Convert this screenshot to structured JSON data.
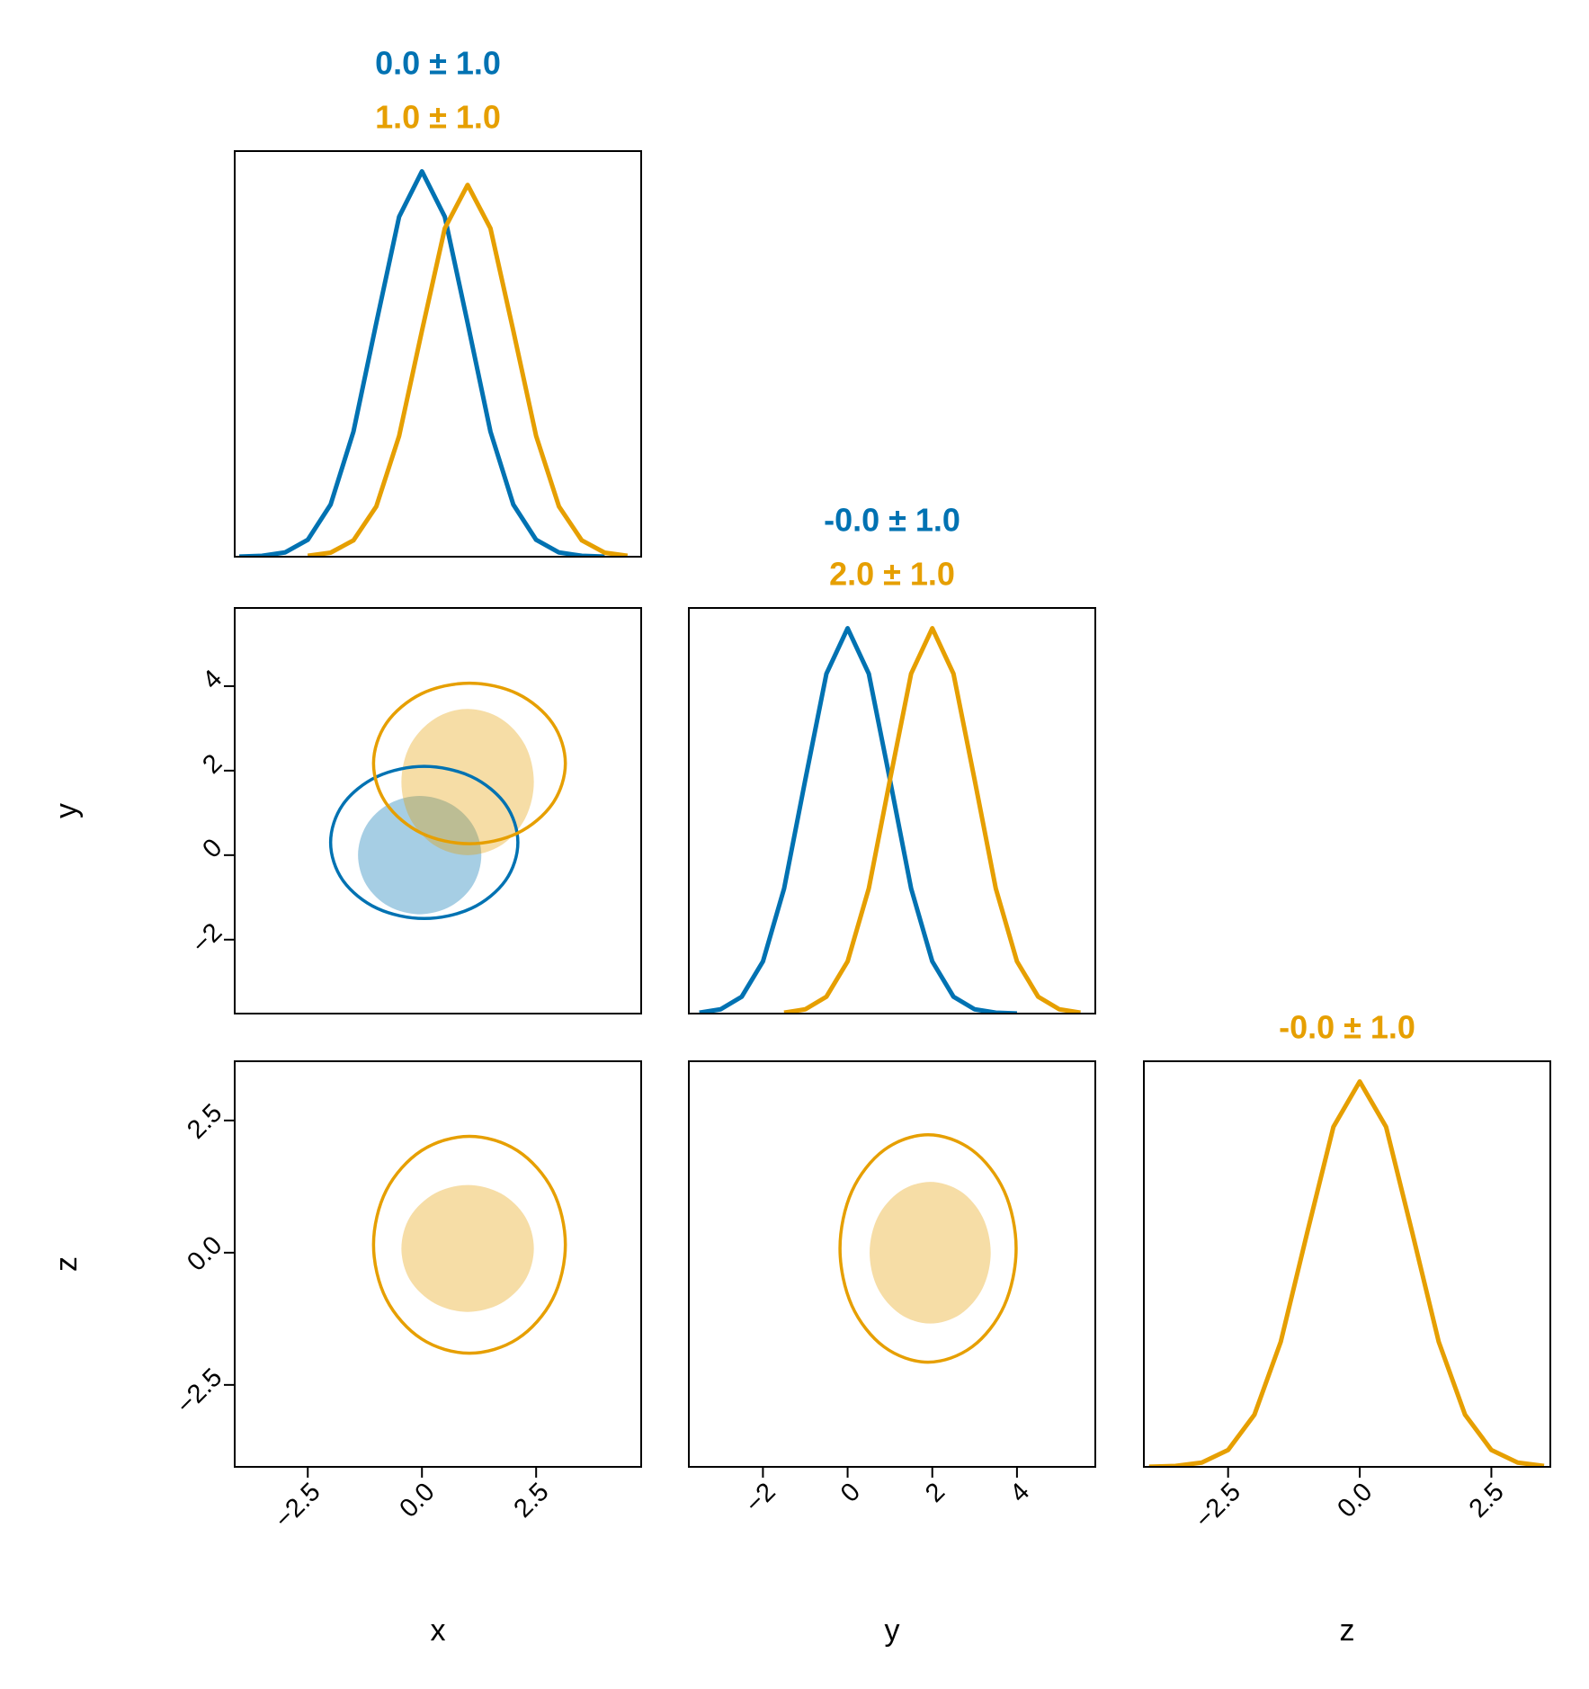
{
  "chart_data": [
    {
      "type": "line",
      "xlim": [
        -4.1,
        4.8
      ],
      "ylim": [
        0,
        0.42
      ],
      "titles": [
        {
          "text": "0.0 ± 1.0",
          "color": "#0072b2"
        },
        {
          "text": "1.0 ± 1.0",
          "color": "#e69f00"
        }
      ],
      "series": [
        {
          "color": "#0072b2",
          "x": [
            -4,
            -3.5,
            -3,
            -2.5,
            -2,
            -1.5,
            -1,
            -0.5,
            0,
            0.5,
            1,
            1.5,
            2,
            2.5,
            3,
            3.5,
            4
          ],
          "y": [
            0.0001,
            0.0009,
            0.0044,
            0.0175,
            0.054,
            0.1295,
            0.242,
            0.352,
            0.399,
            0.352,
            0.242,
            0.1295,
            0.054,
            0.0175,
            0.0044,
            0.0009,
            0.0001
          ]
        },
        {
          "color": "#e69f00",
          "x": [
            -2.5,
            -2,
            -1.5,
            -1,
            -0.5,
            0,
            0.5,
            1,
            1.5,
            2,
            2.5,
            3,
            3.5,
            4,
            4.5
          ],
          "y": [
            0.0009,
            0.0042,
            0.0169,
            0.052,
            0.125,
            0.234,
            0.34,
            0.385,
            0.34,
            0.234,
            0.125,
            0.052,
            0.0169,
            0.0042,
            0.0009
          ]
        }
      ]
    },
    {
      "type": "contour",
      "xlim": [
        -4.1,
        4.8
      ],
      "ylim": [
        -3.75,
        5.85
      ],
      "ylabel": "y",
      "yticks": [
        {
          "value": -2,
          "label": "−2"
        },
        0,
        2,
        4
      ],
      "series": [
        {
          "color": "#0072b2",
          "fill": true,
          "x": [
            1.3,
            1.12,
            0.63,
            -0.05,
            -0.73,
            -1.22,
            -1.4,
            -1.22,
            -0.73,
            -0.05,
            0.63,
            1.12
          ],
          "y": [
            0,
            0.7,
            1.21,
            1.4,
            1.21,
            0.7,
            0,
            -0.7,
            -1.21,
            -1.4,
            -1.21,
            -0.7
          ]
        },
        {
          "color": "#e69f00",
          "fill": true,
          "x": [
            2.45,
            2.26,
            1.73,
            1.0,
            0.28,
            -0.26,
            -0.45,
            -0.26,
            0.28,
            1.0,
            1.73,
            2.26
          ],
          "y": [
            1.73,
            2.6,
            3.23,
            3.46,
            3.23,
            2.6,
            1.73,
            0.87,
            0.23,
            0,
            0.23,
            0.87
          ]
        },
        {
          "color": "#0072b2",
          "fill": false,
          "x": [
            2.1,
            1.83,
            1.08,
            0.05,
            -0.98,
            -1.73,
            -2.0,
            -1.73,
            -0.98,
            0.05,
            1.08,
            1.83
          ],
          "y": [
            0.3,
            1.2,
            1.86,
            2.1,
            1.86,
            1.2,
            0.3,
            -0.6,
            -1.26,
            -1.5,
            -1.26,
            -0.6
          ]
        },
        {
          "color": "#e69f00",
          "fill": false,
          "x": [
            3.14,
            2.86,
            2.09,
            1.04,
            -0.01,
            -0.78,
            -1.06,
            -0.78,
            -0.01,
            1.04,
            2.09,
            2.86
          ],
          "y": [
            2.17,
            3.12,
            3.82,
            4.07,
            3.82,
            3.12,
            2.17,
            1.22,
            0.52,
            0.27,
            0.52,
            1.22
          ]
        }
      ]
    },
    {
      "type": "line",
      "xlim": [
        -3.75,
        5.85
      ],
      "ylim": [
        0,
        0.42
      ],
      "titles": [
        {
          "text": "-0.0 ± 1.0",
          "color": "#0072b2"
        },
        {
          "text": "2.0 ± 1.0",
          "color": "#e69f00"
        }
      ],
      "series": [
        {
          "color": "#0072b2",
          "x": [
            -3.5,
            -3,
            -2.5,
            -2,
            -1.5,
            -1,
            -0.5,
            0,
            0.5,
            1,
            1.5,
            2,
            2.5,
            3,
            3.5,
            4
          ],
          "y": [
            0.0009,
            0.0044,
            0.0175,
            0.054,
            0.1295,
            0.242,
            0.352,
            0.399,
            0.352,
            0.242,
            0.1295,
            0.054,
            0.0175,
            0.0044,
            0.0009,
            0.0001
          ]
        },
        {
          "color": "#e69f00",
          "x": [
            -1.5,
            -1,
            -0.5,
            0,
            0.5,
            1,
            1.5,
            2,
            2.5,
            3,
            3.5,
            4,
            4.5,
            5,
            5.5
          ],
          "y": [
            0.0009,
            0.0044,
            0.0175,
            0.054,
            0.1295,
            0.242,
            0.352,
            0.399,
            0.352,
            0.242,
            0.1295,
            0.054,
            0.0175,
            0.0044,
            0.0009
          ]
        }
      ]
    },
    {
      "type": "contour",
      "xlim": [
        -4.1,
        4.8
      ],
      "ylim": [
        -4.05,
        3.62
      ],
      "xlabel": "x",
      "ylabel": "z",
      "xticks": [
        {
          "value": -2.5,
          "label": "−2.5"
        },
        {
          "value": 0,
          "label": "0.0"
        },
        2.5
      ],
      "yticks": [
        {
          "value": -2.5,
          "label": "−2.5"
        },
        {
          "value": 0,
          "label": "0.0"
        },
        2.5
      ],
      "series": [
        {
          "color": "#e69f00",
          "fill": true,
          "x": [
            2.45,
            2.26,
            1.73,
            1.0,
            0.28,
            -0.26,
            -0.45,
            -0.26,
            0.28,
            1.0,
            1.73,
            2.26
          ],
          "y": [
            0.08,
            0.68,
            1.12,
            1.28,
            1.12,
            0.68,
            0.08,
            -0.52,
            -0.96,
            -1.12,
            -0.96,
            -0.52
          ]
        },
        {
          "color": "#e69f00",
          "fill": false,
          "x": [
            3.14,
            2.86,
            2.09,
            1.04,
            -0.01,
            -0.78,
            -1.06,
            -0.78,
            -0.01,
            1.04,
            2.09,
            2.86
          ],
          "y": [
            0.15,
            1.18,
            1.93,
            2.2,
            1.93,
            1.18,
            0.15,
            -0.88,
            -1.63,
            -1.9,
            -1.63,
            -0.88
          ]
        }
      ]
    },
    {
      "type": "contour",
      "xlim": [
        -3.75,
        5.85
      ],
      "ylim": [
        -4.05,
        3.62
      ],
      "xlabel": "y",
      "xticks": [
        {
          "value": -2,
          "label": "−2"
        },
        0,
        2,
        4
      ],
      "series": [
        {
          "color": "#e69f00",
          "fill": true,
          "x": [
            3.38,
            3.19,
            2.67,
            1.95,
            1.24,
            0.71,
            0.52,
            0.71,
            1.24,
            1.95,
            2.67,
            3.19
          ],
          "y": [
            0,
            0.67,
            1.16,
            1.34,
            1.16,
            0.67,
            0,
            -0.67,
            -1.16,
            -1.34,
            -1.16,
            -0.67
          ]
        },
        {
          "color": "#e69f00",
          "fill": false,
          "x": [
            3.98,
            3.7,
            2.94,
            1.9,
            0.86,
            0.1,
            -0.18,
            0.1,
            0.86,
            1.9,
            2.94,
            3.7
          ],
          "y": [
            0.08,
            1.16,
            1.94,
            2.23,
            1.94,
            1.16,
            0.08,
            -1.0,
            -1.78,
            -2.07,
            -1.78,
            -1.0
          ]
        }
      ]
    },
    {
      "type": "line",
      "xlim": [
        -4.1,
        3.62
      ],
      "ylim": [
        0,
        0.42
      ],
      "xlabel": "z",
      "xticks": [
        {
          "value": -2.5,
          "label": "−2.5"
        },
        {
          "value": 0,
          "label": "0.0"
        },
        2.5
      ],
      "titles": [
        {
          "text": "-0.0 ± 1.0",
          "color": "#e69f00"
        }
      ],
      "series": [
        {
          "color": "#e69f00",
          "x": [
            -4,
            -3.5,
            -3,
            -2.5,
            -2,
            -1.5,
            -1,
            -0.5,
            0,
            0.5,
            1,
            1.5,
            2,
            2.5,
            3,
            3.5
          ],
          "y": [
            0.0001,
            0.0009,
            0.0044,
            0.0175,
            0.054,
            0.1295,
            0.242,
            0.352,
            0.399,
            0.352,
            0.242,
            0.1295,
            0.054,
            0.0175,
            0.0044,
            0.0009
          ]
        }
      ]
    }
  ]
}
